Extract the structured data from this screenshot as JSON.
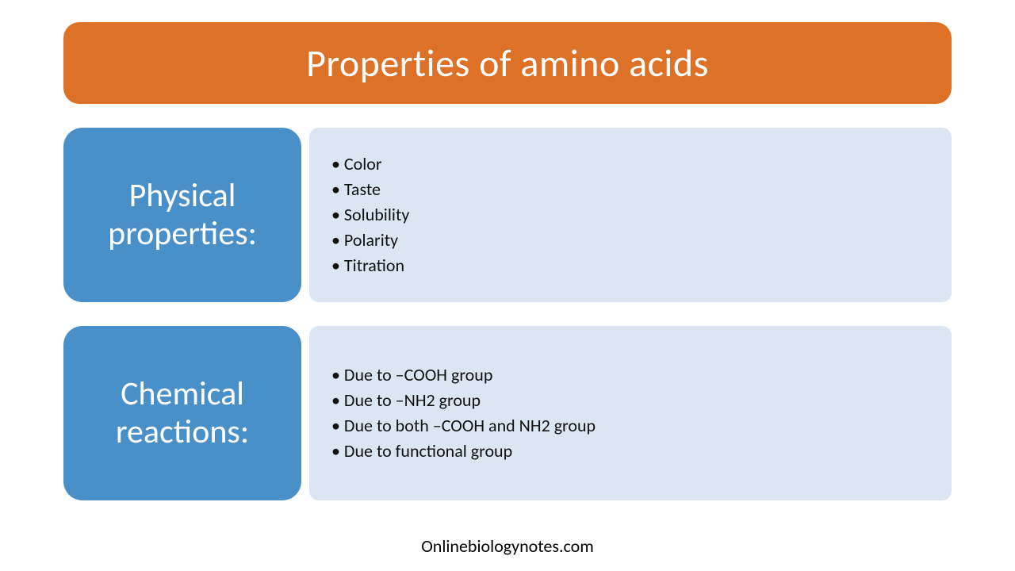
{
  "title": {
    "text": "Properties of amino acids",
    "background_color": "#dd7127",
    "text_color": "#ffffff",
    "font_size": 48
  },
  "sections": [
    {
      "label": "Physical properties:",
      "label_bg": "#4a90c8",
      "label_color": "#ffffff",
      "label_fontsize": 42,
      "content_bg": "#dce6f2",
      "bullet_color": "#111111",
      "bullet_fontsize": 22,
      "items": [
        "Color",
        "Taste",
        "Solubility",
        "Polarity",
        "Titration"
      ],
      "min_height": 220
    },
    {
      "label": "Chemical reactions:",
      "label_bg": "#4a90c8",
      "label_color": "#ffffff",
      "label_fontsize": 42,
      "content_bg": "#dce6f2",
      "bullet_color": "#111111",
      "bullet_fontsize": 22,
      "items": [
        "Due to –COOH group",
        "Due to –NH2 group",
        "Due to both –COOH and NH2 group",
        "Due to functional group"
      ],
      "min_height": 220
    }
  ],
  "footer": {
    "text": "Onlinebiologynotes.com",
    "color": "#000000",
    "font_size": 22
  },
  "layout": {
    "page_bg": "#ffffff",
    "label_width": 300,
    "section_gap": 30,
    "border_radius_title": 20,
    "border_radius_label": 24,
    "border_radius_content": 12
  }
}
